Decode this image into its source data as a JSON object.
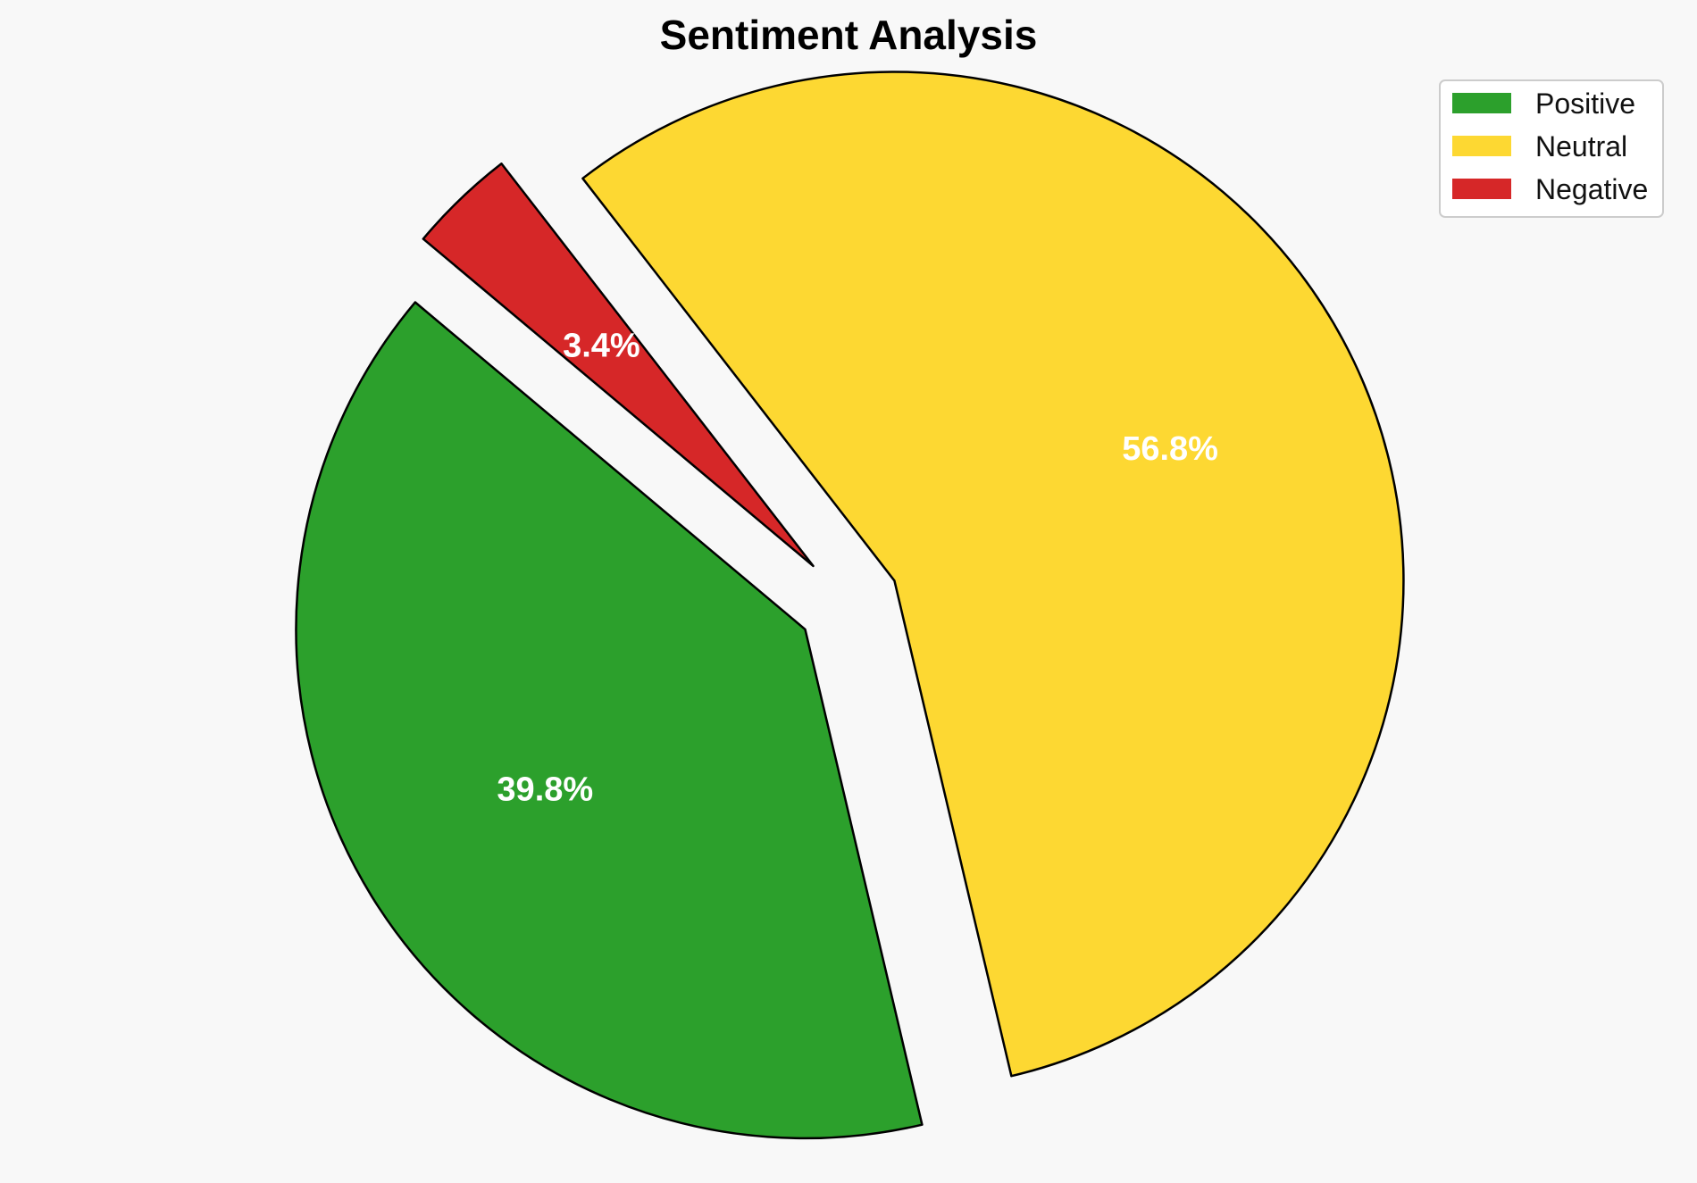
{
  "chart_data": {
    "type": "pie",
    "title": "Sentiment Analysis",
    "slices": [
      {
        "label": "Positive",
        "value": 39.8,
        "display": "39.8%",
        "color": "#2ca02c"
      },
      {
        "label": "Neutral",
        "value": 56.8,
        "display": "56.8%",
        "color": "#fdd832"
      },
      {
        "label": "Negative",
        "value": 3.4,
        "display": "3.4%",
        "color": "#d62728"
      }
    ],
    "start_angle_deg": 140,
    "direction": "counterclockwise",
    "exploded": true,
    "legend": {
      "placement": "top-right",
      "entries": [
        "Positive",
        "Neutral",
        "Negative"
      ]
    },
    "edge_color": "#000000"
  }
}
